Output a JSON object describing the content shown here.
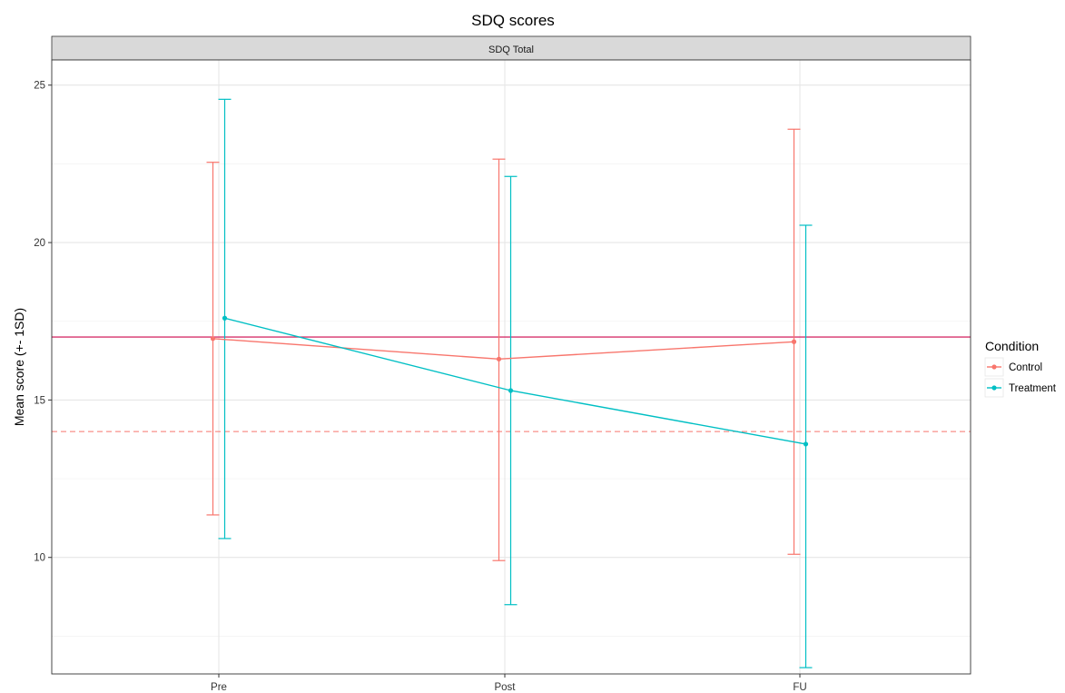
{
  "chart_data": {
    "type": "line",
    "title": "SDQ scores",
    "facet_label": "SDQ Total",
    "xlabel": "",
    "ylabel": "Mean score (+- 1SD)",
    "categories": [
      "Pre",
      "Post",
      "FU"
    ],
    "ylim": [
      6.3,
      25.8
    ],
    "yticks": [
      10,
      15,
      20,
      25
    ],
    "grid": true,
    "legend": {
      "title": "Condition",
      "position": "right"
    },
    "series": [
      {
        "name": "Control",
        "color": "#F8766D",
        "values": [
          16.95,
          16.3,
          16.85
        ],
        "lower": [
          11.35,
          9.9,
          10.1
        ],
        "upper": [
          22.55,
          22.65,
          23.6
        ]
      },
      {
        "name": "Treatment",
        "color": "#00BFC4",
        "values": [
          17.6,
          15.3,
          13.6
        ],
        "lower": [
          10.6,
          8.5,
          6.5
        ],
        "upper": [
          24.55,
          22.1,
          20.55
        ]
      }
    ],
    "reference_lines": [
      {
        "y": 17,
        "style": "solid",
        "color": "#D6336C"
      },
      {
        "y": 14,
        "style": "dashed",
        "color": "#F8766D"
      }
    ]
  }
}
